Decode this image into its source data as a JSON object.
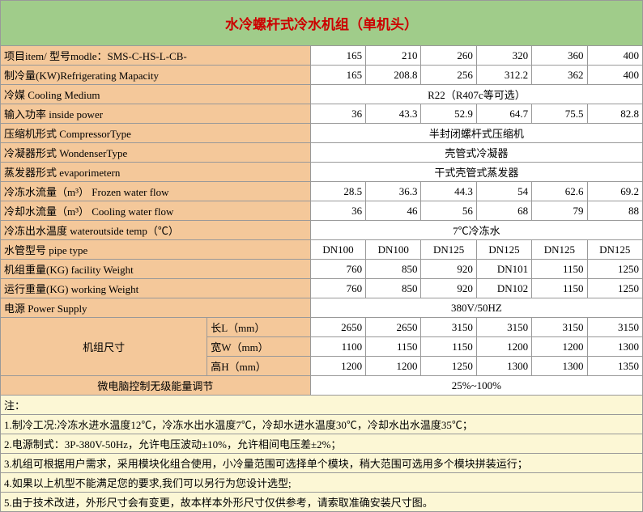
{
  "title": "水冷螺杆式冷水机组（单机头）",
  "cols": [
    165,
    210,
    260,
    320,
    360,
    400
  ],
  "rows": [
    {
      "label": "项目item/ 型号modle：SMS-C-HS-L-CB-",
      "vals": [
        "165",
        "210",
        "260",
        "320",
        "360",
        "400"
      ],
      "align": "r"
    },
    {
      "label": "制冷量(KW)Refrigerating Mapacity",
      "vals": [
        "165",
        "208.8",
        "256",
        "312.2",
        "362",
        "400"
      ],
      "align": "r"
    },
    {
      "label": "冷媒 Cooling Medium",
      "span": "R22（R407c等可选）"
    },
    {
      "label": "输入功率 inside power",
      "vals": [
        "36",
        "43.3",
        "52.9",
        "64.7",
        "75.5",
        "82.8"
      ],
      "align": "r"
    },
    {
      "label": "压缩机形式 CompressorType",
      "span": "半封闭螺杆式压缩机"
    },
    {
      "label": "冷凝器形式 WondenserType",
      "span": "壳管式冷凝器"
    },
    {
      "label": "蒸发器形式 evaporimetern",
      "span": "干式壳管式蒸发器"
    },
    {
      "label": "冷冻水流量（m³） Frozen water flow",
      "vals": [
        "28.5",
        "36.3",
        "44.3",
        "54",
        "62.6",
        "69.2"
      ],
      "align": "r"
    },
    {
      "label": "冷却水流量（m³） Cooling water flow",
      "vals": [
        "36",
        "46",
        "56",
        "68",
        "79",
        "88"
      ],
      "align": "r"
    },
    {
      "label": "冷冻出水温度 wateroutside temp（℃）",
      "span": "7℃冷冻水"
    },
    {
      "label": "水管型号 pipe type",
      "vals": [
        "DN100",
        "DN100",
        "DN125",
        "DN125",
        "DN125",
        "DN125"
      ],
      "align": "c"
    },
    {
      "label": "机组重量(KG) facility Weight",
      "vals": [
        "760",
        "850",
        "920",
        "DN101",
        "1150",
        "1250"
      ],
      "align": "r"
    },
    {
      "label": "运行重量(KG) working Weight",
      "vals": [
        "760",
        "850",
        "920",
        "DN102",
        "1150",
        "1250"
      ],
      "align": "r"
    },
    {
      "label": "电源 Power Supply",
      "span": "380V/50HZ"
    }
  ],
  "dim_label": "机组尺寸",
  "dims": [
    {
      "sub": "长L（mm）",
      "vals": [
        "2650",
        "2650",
        "3150",
        "3150",
        "3150",
        "3150"
      ]
    },
    {
      "sub": "宽W（mm）",
      "vals": [
        "1100",
        "1150",
        "1150",
        "1200",
        "1200",
        "1300"
      ]
    },
    {
      "sub": "高H（mm）",
      "vals": [
        "1200",
        "1200",
        "1250",
        "1300",
        "1300",
        "1350"
      ]
    }
  ],
  "micro_label": "微电脑控制无级能量调节",
  "micro_val": "25%~100%",
  "notes_h": "注：",
  "notes": [
    "1.制冷工况:冷冻水进水温度12℃，冷冻水出水温度7℃，冷却水进水温度30℃，冷却水出水温度35℃；",
    "2.电源制式：3P-380V-50Hz，允许电压波动±10%，允许相间电压差±2%；",
    "3.机组可根据用户需求，采用模块化组合使用，小冷量范围可选择单个模块，稍大范围可选用多个模块拼装运行；",
    "4.如果以上机型不能满足您的要求,我们可以另行为您设计选型;",
    "5.由于技术改进，外形尺寸会有变更，故本样本外形尺寸仅供参考，请索取准确安装尺寸图。"
  ],
  "colors": {
    "title_bg": "#a0cc8a",
    "title_fg": "#cc0000",
    "label_bg": "#f4c89a",
    "notes_bg": "#fcf7d5",
    "border": "#999999"
  }
}
